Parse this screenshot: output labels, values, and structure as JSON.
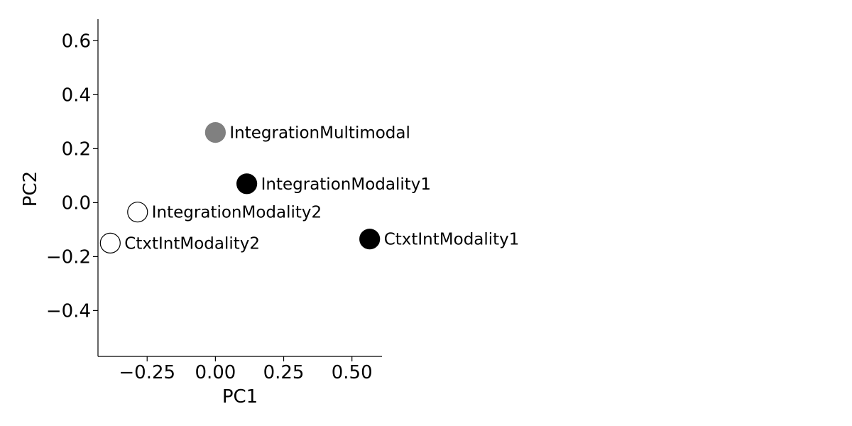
{
  "chart_data": {
    "type": "scatter",
    "xlabel": "PC1",
    "ylabel": "PC2",
    "xlim": [
      -0.43,
      0.61
    ],
    "ylim": [
      -0.57,
      0.68
    ],
    "xticks": [
      -0.25,
      0.0,
      0.25,
      0.5
    ],
    "xtick_labels": [
      "−0.25",
      "0.00",
      "0.25",
      "0.50"
    ],
    "yticks": [
      0.6,
      0.4,
      0.2,
      0.0,
      -0.2,
      -0.4
    ],
    "ytick_labels": [
      "0.6",
      "0.4",
      "0.2",
      "0.0",
      "−0.2",
      "−0.4"
    ],
    "grid": false,
    "points": [
      {
        "label": "IntegrationMultimodal",
        "x": 0.0,
        "y": 0.26,
        "fill": "#808080",
        "edge": "#808080"
      },
      {
        "label": "IntegrationModality1",
        "x": 0.115,
        "y": 0.07,
        "fill": "#000000",
        "edge": "#000000"
      },
      {
        "label": "IntegrationModality2",
        "x": -0.285,
        "y": -0.035,
        "fill": "#ffffff",
        "edge": "#000000"
      },
      {
        "label": "CtxtIntModality2",
        "x": -0.385,
        "y": -0.15,
        "fill": "#ffffff",
        "edge": "#000000"
      },
      {
        "label": "CtxtIntModality1",
        "x": 0.565,
        "y": -0.135,
        "fill": "#000000",
        "edge": "#000000"
      }
    ]
  }
}
